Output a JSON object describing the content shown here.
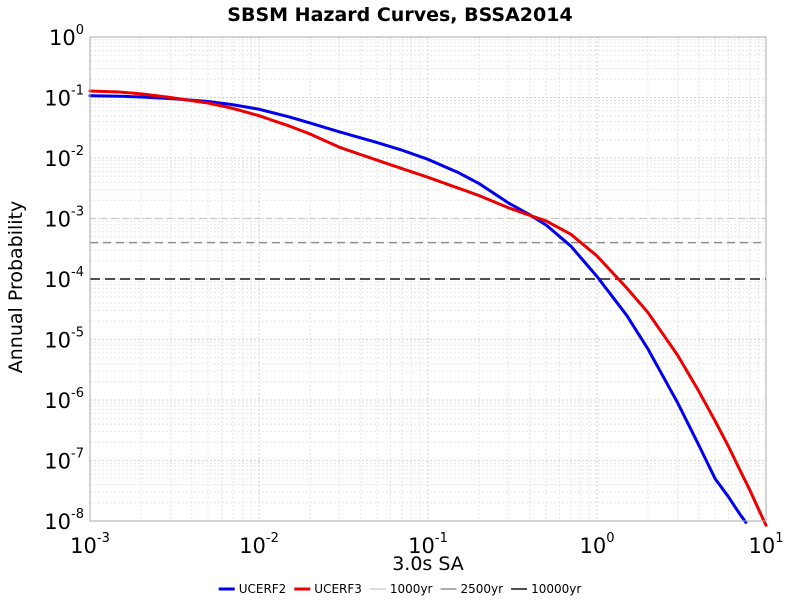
{
  "chart_data": {
    "type": "line",
    "title": "SBSM Hazard Curves, BSSA2014",
    "xlabel": "3.0s SA",
    "ylabel": "Annual Probability",
    "x_scale": "log",
    "y_scale": "log",
    "xlim": [
      0.001,
      10
    ],
    "ylim": [
      1e-08,
      1
    ],
    "grid": true,
    "legend_position": "bottom",
    "x_ticks": [
      {
        "base": "10",
        "exp": "-3",
        "value": 0.001
      },
      {
        "base": "10",
        "exp": "-2",
        "value": 0.01
      },
      {
        "base": "10",
        "exp": "-1",
        "value": 0.1
      },
      {
        "base": "10",
        "exp": "0",
        "value": 1
      },
      {
        "base": "10",
        "exp": "1",
        "value": 10
      }
    ],
    "y_ticks": [
      {
        "base": "10",
        "exp": "0",
        "value": 1
      },
      {
        "base": "10",
        "exp": "-1",
        "value": 0.1
      },
      {
        "base": "10",
        "exp": "-2",
        "value": 0.01
      },
      {
        "base": "10",
        "exp": "-3",
        "value": 0.001
      },
      {
        "base": "10",
        "exp": "-4",
        "value": 0.0001
      },
      {
        "base": "10",
        "exp": "-5",
        "value": 1e-05
      },
      {
        "base": "10",
        "exp": "-6",
        "value": 1e-06
      },
      {
        "base": "10",
        "exp": "-7",
        "value": 1e-07
      },
      {
        "base": "10",
        "exp": "-8",
        "value": 1e-08
      }
    ],
    "series": [
      {
        "name": "UCERF2",
        "color": "#0000ee",
        "x": [
          0.001,
          0.0015,
          0.002,
          0.003,
          0.005,
          0.007,
          0.01,
          0.015,
          0.02,
          0.03,
          0.05,
          0.07,
          0.1,
          0.15,
          0.2,
          0.3,
          0.4,
          0.5,
          0.7,
          1.0,
          1.5,
          2.0,
          3.0,
          4.0,
          5.0,
          6.0,
          7.0,
          7.6
        ],
        "y": [
          0.107,
          0.105,
          0.102,
          0.096,
          0.086,
          0.076,
          0.064,
          0.048,
          0.038,
          0.027,
          0.018,
          0.0135,
          0.0095,
          0.0058,
          0.0038,
          0.0018,
          0.00115,
          0.00078,
          0.00035,
          0.00011,
          2.5e-05,
          7e-06,
          9e-07,
          1.8e-07,
          5e-08,
          2.5e-08,
          1.3e-08,
          9.5e-09
        ]
      },
      {
        "name": "UCERF3",
        "color": "#ee0000",
        "x": [
          0.001,
          0.0015,
          0.002,
          0.003,
          0.005,
          0.007,
          0.01,
          0.015,
          0.02,
          0.03,
          0.05,
          0.07,
          0.1,
          0.15,
          0.2,
          0.3,
          0.4,
          0.5,
          0.7,
          1.0,
          1.5,
          2.0,
          3.0,
          4.0,
          5.0,
          6.0,
          7.0,
          8.0,
          9.0,
          10.0
        ],
        "y": [
          0.128,
          0.123,
          0.115,
          0.1,
          0.081,
          0.066,
          0.05,
          0.034,
          0.025,
          0.015,
          0.0092,
          0.0067,
          0.0048,
          0.0032,
          0.0024,
          0.0015,
          0.00113,
          0.00091,
          0.00055,
          0.00024,
          7.1e-05,
          2.8e-05,
          5.5e-06,
          1.4e-06,
          4.5e-07,
          1.7e-07,
          7e-08,
          3.3e-08,
          1.6e-08,
          8.5e-09
        ]
      }
    ],
    "reference_lines": [
      {
        "name": "1000yr",
        "y": 0.001,
        "color": "#c8c8c8",
        "dash": "6,5",
        "width": 1.2
      },
      {
        "name": "2500yr",
        "y": 0.0004,
        "color": "#909090",
        "dash": "8,5",
        "width": 1.5
      },
      {
        "name": "10000yr",
        "y": 0.0001,
        "color": "#505050",
        "dash": "10,5",
        "width": 2
      }
    ]
  }
}
